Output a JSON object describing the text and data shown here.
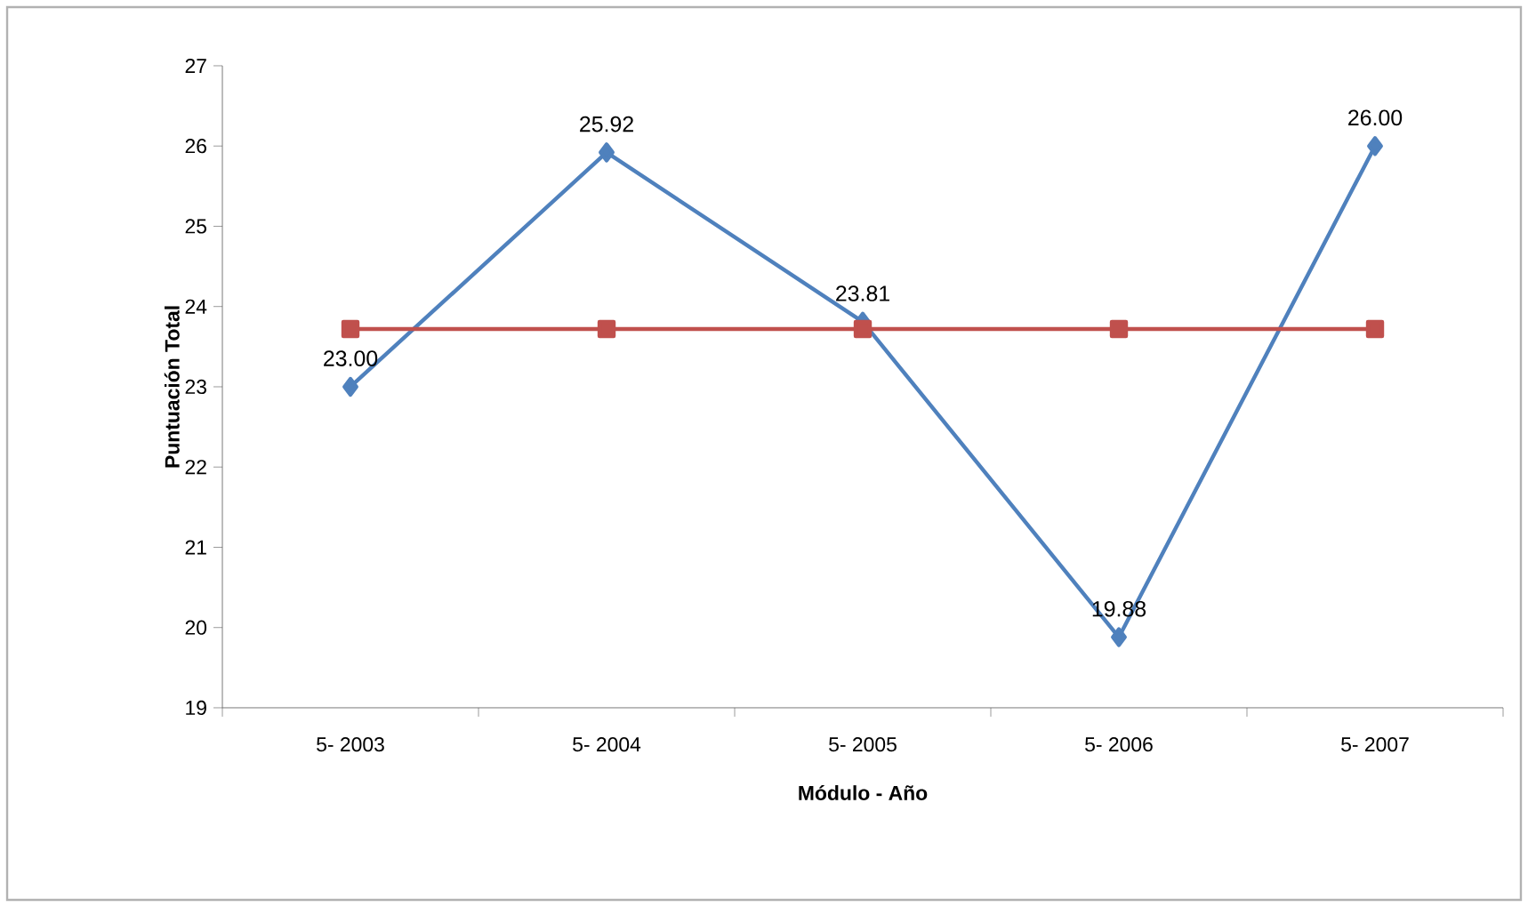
{
  "chart_data": {
    "type": "line",
    "xlabel": "Módulo - Año",
    "ylabel": "Puntuación Total",
    "categories": [
      "5- 2003",
      "5- 2004",
      "5- 2005",
      "5- 2006",
      "5- 2007"
    ],
    "series": [
      {
        "color": "#4f81bd",
        "marker": "diamond",
        "values": [
          23.0,
          25.92,
          23.81,
          19.88,
          26.0
        ],
        "value_labels": [
          "23.00",
          "25.92",
          "23.81",
          "19.88",
          "26.00"
        ]
      },
      {
        "color": "#c0504d",
        "marker": "square",
        "values": [
          23.72,
          23.72,
          23.72,
          23.72,
          23.72
        ]
      }
    ],
    "ylim": [
      19,
      27
    ],
    "yticks": [
      19,
      20,
      21,
      22,
      23,
      24,
      25,
      26,
      27
    ],
    "grid": false,
    "line_style": "solid"
  }
}
